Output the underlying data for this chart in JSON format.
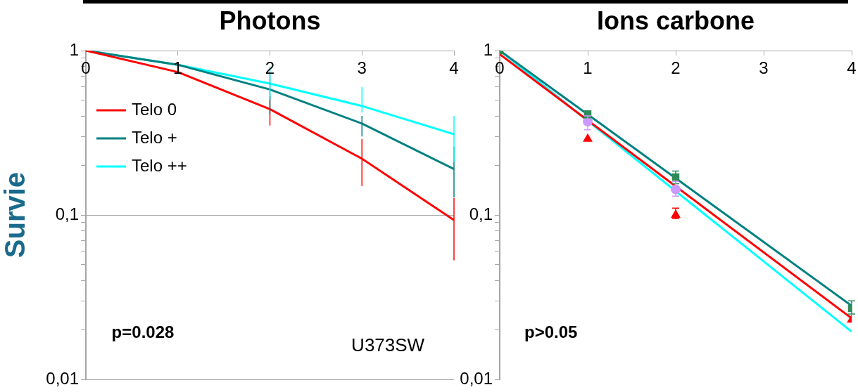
{
  "chart_data": [
    {
      "type": "line",
      "title": "Photons",
      "ylabel": "Survie",
      "log": "y",
      "grid": "y",
      "legend": "top left",
      "marker": "none",
      "xlim": [
        0,
        4
      ],
      "xticks": [
        0,
        1,
        2,
        3,
        4
      ],
      "ylim": [
        0.01,
        1
      ],
      "yticks": [
        {
          "value": 0.01,
          "label": "0,01"
        },
        {
          "value": 0.02,
          "label": null
        },
        {
          "value": 0.03,
          "label": null
        },
        {
          "value": 0.04,
          "label": null
        },
        {
          "value": 0.05,
          "label": null
        },
        {
          "value": 0.06,
          "label": null
        },
        {
          "value": 0.07,
          "label": null
        },
        {
          "value": 0.08,
          "label": null
        },
        {
          "value": 0.09,
          "label": null
        },
        {
          "value": 0.1,
          "label": "0,1"
        },
        {
          "value": 0.2,
          "label": null
        },
        {
          "value": 0.3,
          "label": null
        },
        {
          "value": 0.4,
          "label": null
        },
        {
          "value": 0.5,
          "label": null
        },
        {
          "value": 0.6,
          "label": null
        },
        {
          "value": 0.7,
          "label": null
        },
        {
          "value": 0.8,
          "label": null
        },
        {
          "value": 0.9,
          "label": null
        },
        {
          "value": 1,
          "label": "1"
        }
      ],
      "x": [
        0,
        1,
        2,
        3,
        4
      ],
      "series": [
        {
          "name": "Telo 0",
          "color": "#ff0000",
          "values": [
            1,
            0.74,
            0.44,
            0.22,
            0.093
          ],
          "errors": [
            null,
            null,
            [
              0.35,
              0.53
            ],
            [
              0.15,
              0.29
            ],
            [
              0.053,
              0.127
            ]
          ]
        },
        {
          "name": "Telo +",
          "color": "#008080",
          "values": [
            1,
            0.82,
            0.58,
            0.36,
            0.19
          ],
          "errors": [
            null,
            null,
            [
              0.41,
              0.73
            ],
            [
              0.3,
              0.4
            ],
            [
              0.128,
              0.26
            ]
          ]
        },
        {
          "name": "Telo ++",
          "color": "#00ffff",
          "values": [
            1,
            0.82,
            0.63,
            0.46,
            0.31
          ],
          "errors": [
            null,
            null,
            [
              0.5,
              0.8
            ],
            [
              0.42,
              0.6
            ],
            [
              0.21,
              0.4
            ]
          ]
        }
      ],
      "annotations": [
        "p=0.028",
        "U373SW"
      ]
    },
    {
      "type": "line",
      "title": "Ions carbone",
      "log": "y",
      "grid": false,
      "marker": "none",
      "xlim": [
        0,
        4
      ],
      "xticks": [
        0,
        1,
        2,
        3,
        4
      ],
      "ylim": [
        0.01,
        1
      ],
      "yticks": [
        {
          "value": 0.01,
          "label": "0,01"
        },
        {
          "value": 0.02,
          "label": null
        },
        {
          "value": 0.03,
          "label": null
        },
        {
          "value": 0.04,
          "label": null
        },
        {
          "value": 0.05,
          "label": null
        },
        {
          "value": 0.06,
          "label": null
        },
        {
          "value": 0.07,
          "label": null
        },
        {
          "value": 0.08,
          "label": null
        },
        {
          "value": 0.09,
          "label": null
        },
        {
          "value": 0.1,
          "label": "0,1"
        },
        {
          "value": 0.2,
          "label": null
        },
        {
          "value": 0.3,
          "label": null
        },
        {
          "value": 0.4,
          "label": null
        },
        {
          "value": 0.5,
          "label": null
        },
        {
          "value": 0.6,
          "label": null
        },
        {
          "value": 0.7,
          "label": null
        },
        {
          "value": 0.8,
          "label": null
        },
        {
          "value": 0.9,
          "label": null
        },
        {
          "value": 1,
          "label": "1"
        }
      ],
      "series": [
        {
          "color": "#008080",
          "x": [
            0,
            4
          ],
          "values": [
            1,
            0.028
          ]
        },
        {
          "color": "#ff0000",
          "x": [
            0,
            4
          ],
          "values": [
            0.95,
            0.0235
          ]
        },
        {
          "color": "#00ffff",
          "x": [
            0,
            4
          ],
          "values": [
            1,
            0.0195
          ]
        },
        {
          "type": "scatter",
          "color": "#2e8b57",
          "marker": "square",
          "x": [
            0,
            1,
            2,
            4
          ],
          "values": [
            1,
            0.41,
            0.17,
            0.027
          ],
          "errors": [
            null,
            [
              0.39,
              0.43
            ],
            [
              0.155,
              0.185
            ],
            [
              0.025,
              0.03
            ]
          ]
        },
        {
          "type": "scatter",
          "color": "#ff0000",
          "marker": "triangle",
          "x": [
            1,
            2,
            4
          ],
          "values": [
            0.29,
            0.1,
            0.023
          ],
          "errors": [
            null,
            [
              0.095,
              0.11
            ],
            null
          ]
        },
        {
          "type": "scatter",
          "color": "#cc99ff",
          "marker": "circle",
          "x": [
            1,
            2
          ],
          "values": [
            0.37,
            0.143
          ],
          "errors": [
            [
              0.33,
              0.4
            ],
            [
              0.13,
              0.16
            ]
          ]
        }
      ],
      "annotations": [
        "p>0.05"
      ]
    }
  ]
}
